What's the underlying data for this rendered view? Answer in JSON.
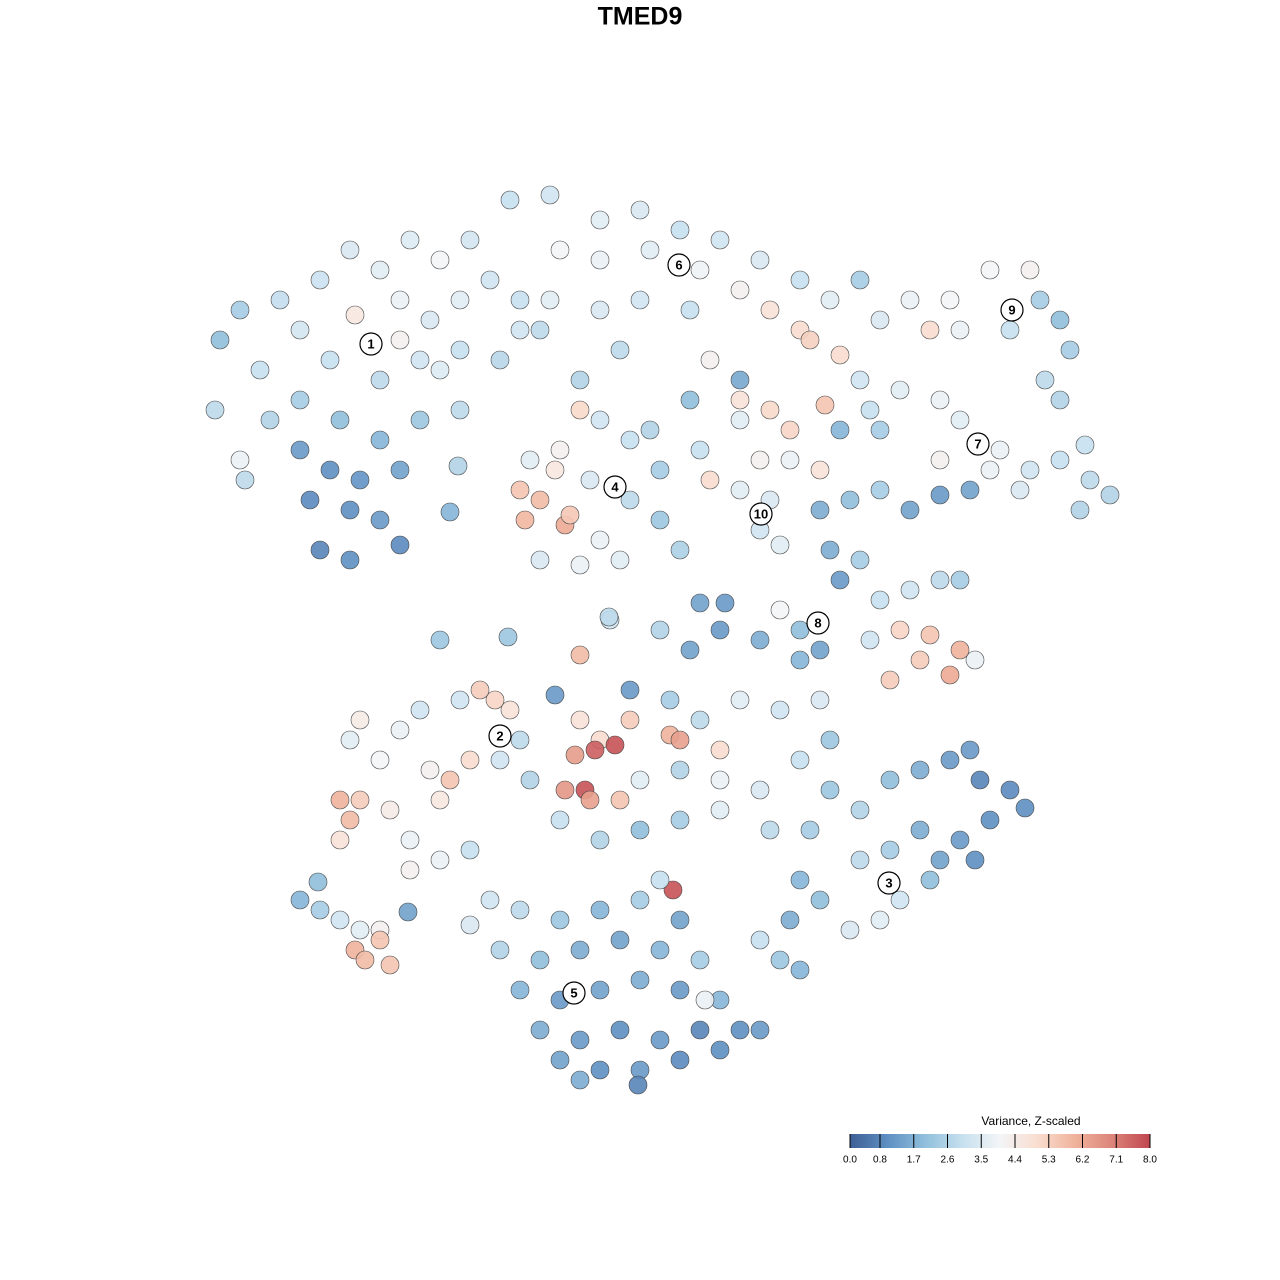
{
  "chart_data": {
    "type": "scatter",
    "title": "TMED9",
    "x": [
      22,
      21.5,
      24,
      26,
      28,
      30,
      32,
      35,
      38,
      41,
      44,
      47,
      35.5,
      40,
      43,
      46,
      49,
      52,
      54,
      33,
      38,
      42,
      46,
      50,
      30,
      34,
      38,
      42,
      46,
      30,
      33,
      36,
      40,
      31,
      35,
      38,
      32,
      35,
      40,
      27,
      24,
      24.5,
      44,
      40,
      51,
      55,
      60,
      64,
      68,
      72,
      76,
      80,
      83,
      56,
      60,
      65,
      70,
      74,
      77,
      80,
      81,
      84,
      55,
      60,
      64,
      69,
      71,
      62,
      58,
      74,
      52,
      53,
      56,
      60,
      63,
      66,
      59,
      63,
      66,
      52,
      54,
      52.5,
      56.5,
      57,
      58,
      60,
      54,
      58,
      62,
      55.5,
      65,
      69,
      68,
      74,
      77,
      79,
      76,
      79,
      82,
      74,
      77,
      76,
      78,
      70,
      71,
      74,
      82.5,
      88,
      91,
      95,
      99,
      103,
      104,
      106,
      107,
      106,
      96,
      93,
      101,
      86,
      104.5,
      86,
      90,
      94,
      87,
      84,
      88,
      96,
      100,
      103,
      106,
      109,
      111,
      108,
      102,
      99,
      94,
      108.5,
      82,
      85,
      88,
      91,
      94,
      97,
      83,
      86,
      84,
      88,
      91,
      94,
      96,
      90,
      93,
      96,
      92,
      89,
      95,
      97.5,
      87,
      78,
      82,
      80,
      34,
      35,
      36,
      34,
      39,
      41,
      44,
      43,
      38,
      40,
      36,
      42,
      46,
      48,
      49.5,
      51,
      47,
      45,
      50,
      53,
      41,
      44,
      47,
      35,
      30,
      32,
      34,
      36,
      38,
      35.5,
      36.5,
      39,
      38,
      40.8,
      31.8,
      83,
      86,
      89,
      92,
      95,
      98,
      101,
      102.5,
      99,
      96,
      92,
      89,
      86,
      90,
      88,
      85,
      82,
      80,
      79,
      78,
      80,
      76,
      94,
      97,
      97.5,
      93,
      61,
      66,
      69,
      72,
      76,
      80,
      63,
      67,
      70,
      74,
      78,
      82,
      58,
      60,
      63,
      67,
      68,
      72,
      57.5,
      59.5,
      61.5,
      58.5,
      56.5,
      59,
      62,
      64,
      68,
      72,
      76,
      80,
      83,
      56,
      60,
      64,
      68,
      72,
      77,
      81,
      67.3,
      58,
      52,
      55.5,
      66,
      49,
      52,
      56,
      60,
      64,
      50,
      54,
      58,
      62,
      66,
      70,
      52,
      56,
      60,
      64,
      68,
      72,
      54,
      58,
      62,
      66,
      70,
      74,
      56,
      60,
      64,
      68,
      72,
      76,
      58,
      63.8,
      70.5,
      47,
      68,
      44,
      50.8,
      60.9,
      70,
      72.5,
      45,
      45.8
    ],
    "y": [
      34,
      41,
      31,
      37,
      30,
      33,
      28,
      25,
      27,
      24,
      26,
      24,
      31.5,
      30,
      32,
      30,
      28,
      30,
      33,
      36,
      38,
      36,
      35,
      36,
      40,
      42,
      44,
      42,
      41,
      45,
      47,
      48,
      47,
      50,
      51,
      52,
      55,
      56,
      54.5,
      42,
      46,
      48,
      37,
      34,
      20,
      19.5,
      22,
      21,
      23,
      24,
      26,
      28,
      30,
      25,
      26,
      25,
      27,
      29,
      31,
      33,
      34,
      35.5,
      30,
      31,
      30,
      31,
      36,
      35,
      38,
      38,
      33,
      46,
      45,
      42,
      44,
      47,
      48,
      50,
      52,
      49,
      50,
      52,
      52.5,
      51.5,
      41,
      54,
      56,
      56.5,
      56,
      47,
      43,
      40,
      55,
      42,
      41,
      43,
      46,
      46,
      47,
      49,
      50,
      53,
      54.5,
      45,
      48,
      40,
      40.5,
      32,
      30,
      30,
      27,
      27,
      30,
      32,
      35,
      40,
      33,
      33,
      33,
      28,
      38,
      38,
      39,
      40,
      41,
      43,
      43,
      42,
      45,
      47,
      46,
      48,
      49.5,
      51,
      49,
      47,
      46,
      44.5,
      51,
      50,
      49,
      51,
      49.5,
      49,
      55,
      56,
      58,
      60,
      59,
      58,
      58,
      63,
      63.5,
      65,
      66,
      68,
      67.5,
      66,
      64,
      61,
      65,
      63,
      80,
      82,
      80,
      84,
      81,
      84,
      80,
      77,
      76,
      73,
      72,
      71,
      70,
      69,
      70,
      71,
      76,
      78,
      76,
      78,
      87,
      86,
      85,
      74,
      90,
      91,
      92,
      93,
      93,
      95,
      96,
      96.5,
      94,
      91.2,
      88.2,
      79,
      81,
      78,
      77,
      76,
      78,
      79,
      80.8,
      82,
      84,
      83,
      85,
      86,
      90,
      92,
      93,
      90,
      88,
      92,
      96,
      97,
      94,
      86,
      75,
      86,
      88,
      62,
      63,
      65,
      63,
      64,
      66,
      69,
      70,
      72,
      70,
      71,
      70,
      72,
      74,
      72,
      73.5,
      74,
      75,
      75.5,
      75,
      74.5,
      79,
      79,
      80,
      80,
      78,
      77,
      78,
      79,
      76,
      74,
      82,
      84,
      83,
      82,
      81,
      83,
      83,
      89,
      65.5,
      74,
      69.5,
      88,
      90,
      91,
      92,
      91,
      90,
      95,
      96,
      95,
      94,
      95,
      96,
      99,
      100,
      99,
      98,
      99,
      100,
      103,
      104,
      103,
      104,
      103,
      103,
      106,
      107,
      107,
      106,
      105,
      103,
      108,
      108.5,
      100,
      92.5,
      92,
      64,
      63.7,
      61.7,
      60.3,
      60.3,
      51.2,
      46.6
    ],
    "values": [
      2.0,
      2.8,
      2.4,
      3.0,
      2.9,
      3.3,
      3.1,
      3.4,
      3.6,
      3.5,
      4.0,
      3.3,
      4.6,
      3.8,
      3.4,
      3.6,
      3.2,
      3.0,
      2.8,
      3.0,
      2.8,
      3.2,
      3.0,
      2.7,
      2.4,
      2.0,
      1.8,
      2.2,
      2.8,
      1.2,
      1.0,
      1.1,
      1.4,
      0.9,
      1.0,
      1.2,
      0.8,
      1.0,
      0.9,
      2.6,
      3.8,
      2.8,
      3.5,
      4.2,
      3.0,
      3.2,
      3.6,
      3.4,
      3.0,
      3.2,
      3.4,
      3.0,
      3.6,
      4.0,
      3.8,
      3.6,
      3.9,
      4.2,
      4.8,
      5.0,
      5.3,
      5.0,
      3.6,
      3.4,
      3.2,
      3.0,
      4.2,
      2.8,
      2.6,
      1.5,
      3.2,
      3.6,
      4.2,
      3.2,
      3.0,
      2.4,
      3.4,
      2.8,
      2.2,
      5.6,
      5.8,
      5.9,
      6.2,
      5.5,
      5.1,
      3.8,
      3.4,
      3.8,
      3.6,
      4.6,
      2.6,
      2.0,
      2.5,
      3.6,
      5.1,
      5.2,
      4.2,
      3.8,
      4.8,
      3.6,
      3.4,
      3.2,
      3.6,
      3.0,
      5.0,
      4.8,
      5.6,
      3.4,
      3.8,
      4.0,
      4.0,
      4.2,
      2.4,
      2.0,
      2.4,
      2.6,
      3.8,
      5.0,
      3.0,
      2.4,
      2.8,
      3.2,
      3.6,
      3.8,
      3.0,
      1.8,
      2.4,
      3.6,
      3.8,
      3.2,
      3.0,
      2.8,
      2.6,
      2.6,
      3.4,
      3.8,
      4.2,
      3.0,
      1.6,
      2.0,
      2.4,
      1.4,
      1.2,
      1.4,
      1.6,
      2.4,
      1.2,
      3.0,
      3.2,
      2.8,
      2.4,
      5.2,
      5.6,
      6.0,
      5.4,
      5.4,
      6.2,
      3.8,
      3.2,
      4.0,
      1.4,
      2.0,
      6.0,
      5.8,
      5.4,
      4.8,
      4.4,
      3.8,
      4.6,
      4.2,
      4.0,
      3.8,
      4.4,
      3.2,
      3.2,
      5.4,
      5.2,
      4.8,
      5.0,
      5.6,
      3.2,
      2.6,
      4.2,
      3.8,
      3.0,
      3.6,
      1.8,
      2.4,
      3.2,
      3.6,
      4.2,
      6.0,
      5.8,
      5.6,
      5.6,
      1.4,
      2.0,
      2.2,
      2.6,
      2.0,
      1.6,
      1.2,
      0.8,
      0.9,
      1.0,
      1.0,
      1.2,
      1.6,
      2.4,
      2.8,
      3.2,
      3.6,
      3.4,
      2.0,
      1.8,
      1.6,
      2.2,
      1.8,
      3.0,
      1.4,
      1.2,
      1.0,
      2.0,
      3.2,
      2.6,
      1.4,
      1.2,
      1.6,
      1.8,
      1.2,
      2.4,
      2.8,
      3.6,
      3.2,
      3.4,
      4.8,
      5.0,
      5.4,
      6.0,
      6.4,
      5.0,
      6.5,
      7.6,
      7.8,
      7.8,
      6.6,
      6.4,
      5.6,
      3.6,
      2.6,
      3.8,
      3.4,
      3.0,
      2.2,
      3.0,
      2.6,
      2.0,
      2.4,
      3.6,
      2.8,
      2.4,
      7.8,
      5.8,
      2.8,
      1.2,
      3.0,
      3.2,
      2.8,
      2.2,
      1.8,
      2.4,
      2.6,
      2.0,
      1.6,
      1.4,
      1.8,
      2.4,
      1.8,
      1.2,
      1.4,
      1.6,
      1.2,
      1.8,
      1.6,
      1.2,
      1.0,
      1.2,
      0.8,
      1.0,
      1.4,
      1.0,
      1.2,
      0.9,
      1.0,
      1.2,
      1.6,
      0.8,
      3.8,
      3.4,
      1.4,
      2.2,
      2.2,
      2.8,
      1.4,
      1.2,
      1.8,
      2.6
    ],
    "xlim": [
      0,
      128
    ],
    "ylim": [
      128,
      0
    ],
    "grid": false,
    "annotations": [
      {
        "text": "1",
        "x": 37.1,
        "y": 34.4
      },
      {
        "text": "6",
        "x": 67.9,
        "y": 26.5
      },
      {
        "text": "9",
        "x": 101.2,
        "y": 31
      },
      {
        "text": "7",
        "x": 97.8,
        "y": 44.4
      },
      {
        "text": "4",
        "x": 61.5,
        "y": 48.7
      },
      {
        "text": "10",
        "x": 76.1,
        "y": 51.4
      },
      {
        "text": "8",
        "x": 81.8,
        "y": 62.3
      },
      {
        "text": "2",
        "x": 50,
        "y": 73.6
      },
      {
        "text": "3",
        "x": 88.9,
        "y": 88.3
      },
      {
        "text": "5",
        "x": 57.4,
        "y": 99.3
      }
    ],
    "colorbar": {
      "title": "Variance, Z-scaled",
      "clim": [
        0,
        8
      ],
      "ticks": [
        {
          "value": 0,
          "label": "0.0"
        },
        0.8,
        1.7,
        2.6,
        3.5,
        4.4,
        5.3,
        6.2,
        7.1,
        {
          "value": 8,
          "label": "8.0"
        }
      ],
      "colors": [
        "#3e5f96",
        "#5e8fc2",
        "#90bfdc",
        "#c7e0ef",
        "#f3f5f7",
        "#f9ddcf",
        "#f0b39c",
        "#dc8479",
        "#c0454f"
      ]
    }
  }
}
